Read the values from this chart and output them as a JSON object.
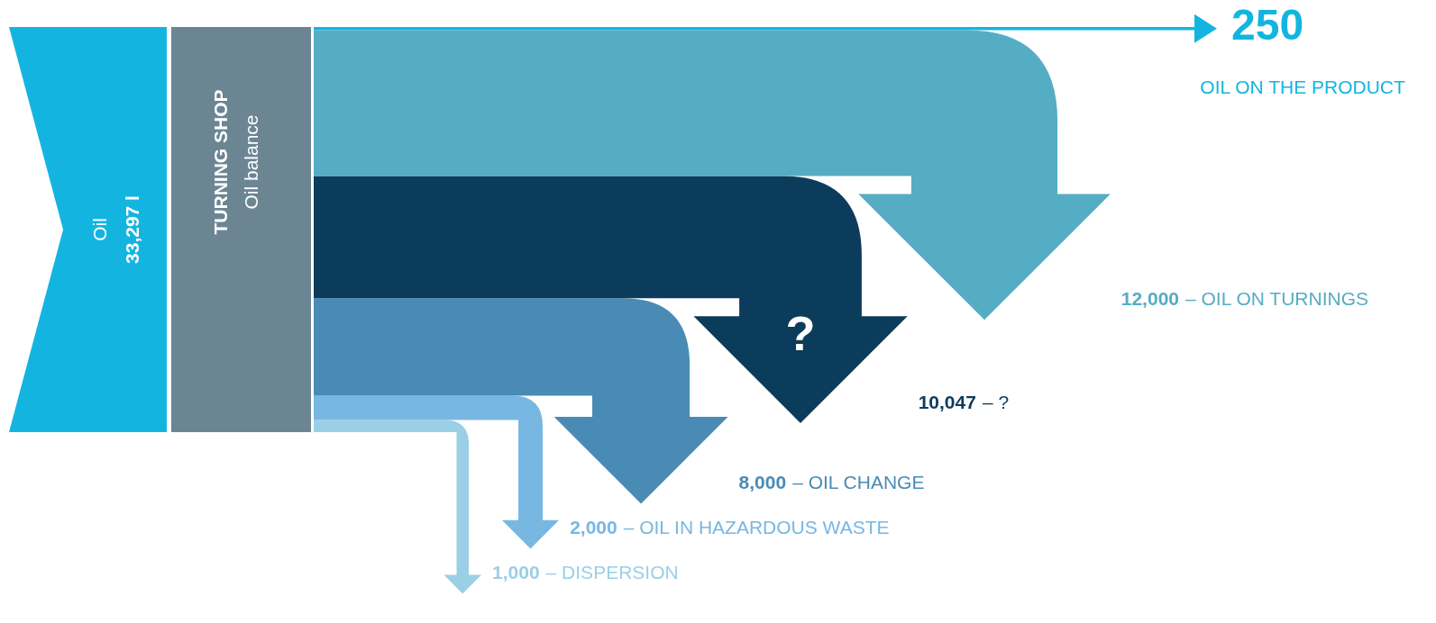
{
  "chart_data": {
    "type": "other",
    "categories": [
      "OIL ON THE PRODUCT",
      "– OIL ON TURNINGS",
      "– ?",
      "– OIL CHANGE",
      "– OIL IN HAZARDOUS WASTE",
      "– DISPERSION"
    ],
    "values": [
      250,
      12000,
      10047,
      8000,
      2000,
      1000
    ],
    "value_labels": [
      "250",
      "12,000",
      "10,047",
      "8,000",
      "2,000",
      "1,000"
    ],
    "colors": [
      "#13b5e0",
      "#55adc4",
      "#0c3c5c",
      "#4a8bb5",
      "#78b7e1",
      "#9acfe6"
    ],
    "annotations": [
      "Oil",
      "33,297 l",
      "TURNING SHOP",
      "Oil balance",
      "?"
    ]
  }
}
